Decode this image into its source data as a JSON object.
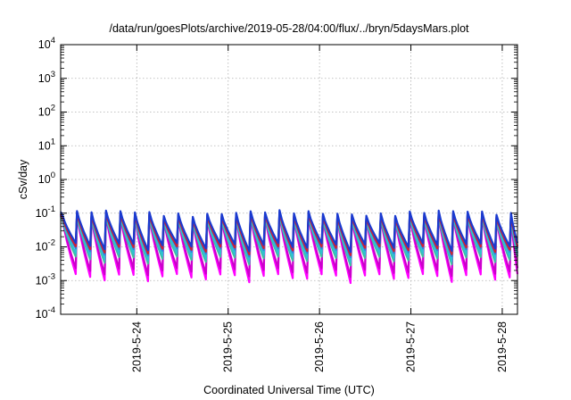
{
  "chart_data": {
    "type": "line",
    "title": "/data/run/goesPlots/archive/2019-05-28/04:00/flux/../bryn/5daysMars.plot",
    "xlabel": "Coordinated Universal Time (UTC)",
    "ylabel": "cSv/day",
    "y_scale": "log",
    "ylim": [
      0.0001,
      10000
    ],
    "y_ticks": [
      {
        "value": 0.0001,
        "mant": "10",
        "exp": "-4"
      },
      {
        "value": 0.001,
        "mant": "10",
        "exp": "-3"
      },
      {
        "value": 0.01,
        "mant": "10",
        "exp": "-2"
      },
      {
        "value": 0.1,
        "mant": "10",
        "exp": "-1"
      },
      {
        "value": 1,
        "mant": "10",
        "exp": "0"
      },
      {
        "value": 10,
        "mant": "10",
        "exp": "1"
      },
      {
        "value": 100,
        "mant": "10",
        "exp": "2"
      },
      {
        "value": 1000,
        "mant": "10",
        "exp": "3"
      },
      {
        "value": 10000,
        "mant": "10",
        "exp": "4"
      }
    ],
    "xlim": [
      "2019-05-23T04:00",
      "2019-05-28T04:00"
    ],
    "x_ticks": [
      {
        "label": "2019-5-24",
        "value": "2019-05-24T00:00"
      },
      {
        "label": "2019-5-25",
        "value": "2019-05-25T00:00"
      },
      {
        "label": "2019-5-26",
        "value": "2019-05-26T00:00"
      },
      {
        "label": "2019-5-27",
        "value": "2019-05-27T00:00"
      },
      {
        "label": "2019-5-28",
        "value": "2019-05-28T00:00"
      }
    ],
    "grid": true,
    "series_colors": [
      "#ff00ff",
      "#cc00cc",
      "#3fbfa0",
      "#30c0d0",
      "#2f80e0",
      "#d02030",
      "#1a3ad0"
    ],
    "envelope": {
      "pulse_period_hours": 3.8,
      "peak_range": [
        0.06,
        0.12
      ],
      "trough_range": [
        0.001,
        0.004
      ],
      "note_values": "sawtooth daily-like pulses between ~1e-3 and ~1e-1 cSv/day"
    },
    "series": [
      {
        "color": "#ff00ff",
        "peak": 0.09,
        "trough": 0.0012
      },
      {
        "color": "#cc00cc",
        "peak": 0.085,
        "trough": 0.0018
      },
      {
        "color": "#3fbfa0",
        "peak": 0.08,
        "trough": 0.004
      },
      {
        "color": "#30c0d0",
        "peak": 0.085,
        "trough": 0.005
      },
      {
        "color": "#2f80e0",
        "peak": 0.1,
        "trough": 0.007
      },
      {
        "color": "#d02030",
        "peak": 0.095,
        "trough": 0.008
      },
      {
        "color": "#1a3ad0",
        "peak": 0.11,
        "trough": 0.01
      }
    ]
  }
}
